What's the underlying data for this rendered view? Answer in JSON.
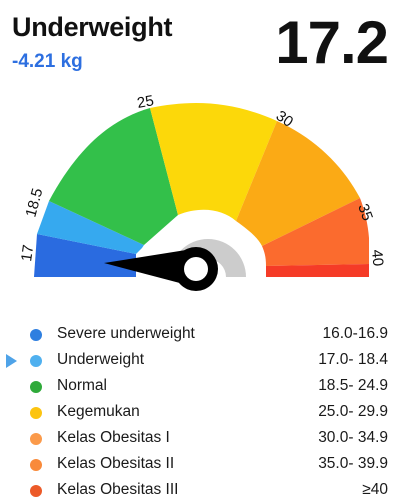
{
  "header": {
    "status": "Underweight",
    "weight_diff": "-4.21 kg",
    "bmi_value": "17.2"
  },
  "gauge": {
    "value": 17.2,
    "tick_labels": [
      "17",
      "18.5",
      "25",
      "30",
      "35",
      "40"
    ],
    "segment_colors": [
      "#2a6be0",
      "#36a9ef",
      "#33c04a",
      "#fcd80a",
      "#fbaa15",
      "#fb6b2e",
      "#f53b27"
    ],
    "track_color": "#cccccc",
    "needle_color": "#000000"
  },
  "legend": [
    {
      "label": "Severe underweight",
      "range": "16.0-16.9",
      "color": "#2f7fe0",
      "selected": false
    },
    {
      "label": "Underweight",
      "range": "17.0- 18.4",
      "color": "#4fb0ef",
      "selected": true
    },
    {
      "label": "Normal",
      "range": "18.5- 24.9",
      "color": "#2faa3a",
      "selected": false
    },
    {
      "label": "Kegemukan",
      "range": "25.0- 29.9",
      "color": "#fcc410",
      "selected": false
    },
    {
      "label": "Kelas Obesitas I",
      "range": "30.0- 34.9",
      "color": "#fb9a4a",
      "selected": false
    },
    {
      "label": "Kelas Obesitas II",
      "range": "35.0- 39.9",
      "color": "#f98a3a",
      "selected": false
    },
    {
      "label": "Kelas Obesitas III",
      "range": "≥40",
      "color": "#ec5a28",
      "selected": false
    }
  ]
}
